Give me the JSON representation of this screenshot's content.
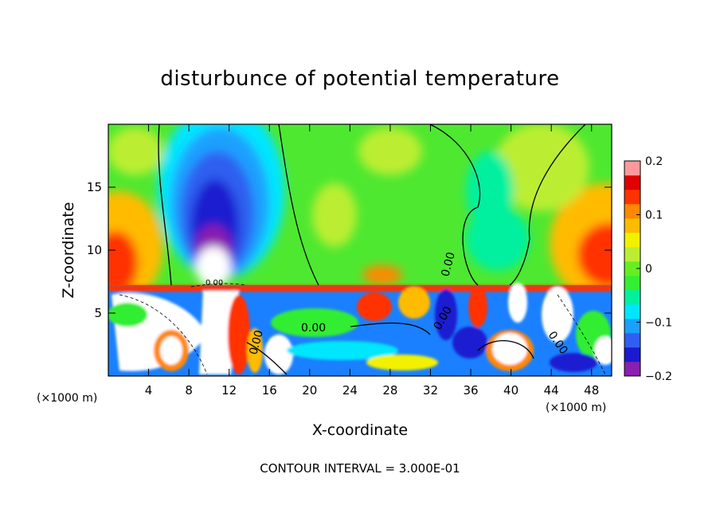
{
  "chart_data": {
    "type": "heatmap",
    "title": "disturbunce of potential temperature",
    "xlabel": "X-coordinate",
    "ylabel": "Z-coordinate",
    "x_unit_left": "(×1000 m)",
    "x_unit_right": "(×1000 m)",
    "xlim": [
      0,
      50
    ],
    "ylim": [
      0,
      20
    ],
    "x_ticks": [
      4,
      8,
      12,
      16,
      20,
      24,
      28,
      32,
      36,
      40,
      44,
      48
    ],
    "x_tick_labels": [
      "4",
      "8",
      "12",
      "16",
      "20",
      "24",
      "28",
      "32",
      "36",
      "40",
      "44",
      "48"
    ],
    "y_ticks": [
      5,
      10,
      15
    ],
    "y_tick_labels": [
      "5",
      "10",
      "15"
    ],
    "colorbar": {
      "range": [
        -0.2,
        0.2
      ],
      "ticks": [
        0.2,
        0.1,
        0,
        -0.1,
        -0.2
      ],
      "tick_labels": [
        "0.2",
        "0.1",
        "0",
        "−0.1",
        "−0.2"
      ],
      "colors": [
        "#8a1fb0",
        "#1a1ad0",
        "#2f5ff0",
        "#1aa0ff",
        "#00e6ff",
        "#00f0a0",
        "#33ee33",
        "#66ee22",
        "#bbee33",
        "#f2f200",
        "#ffbb00",
        "#ff8800",
        "#ff3300",
        "#e00000",
        "#ff9999"
      ]
    },
    "contour_labels": [
      "0.00",
      "0.00",
      "0.00",
      "0.00",
      "0.00",
      "0.00"
    ],
    "footer": "CONTOUR INTERVAL = 3.000E-01"
  }
}
